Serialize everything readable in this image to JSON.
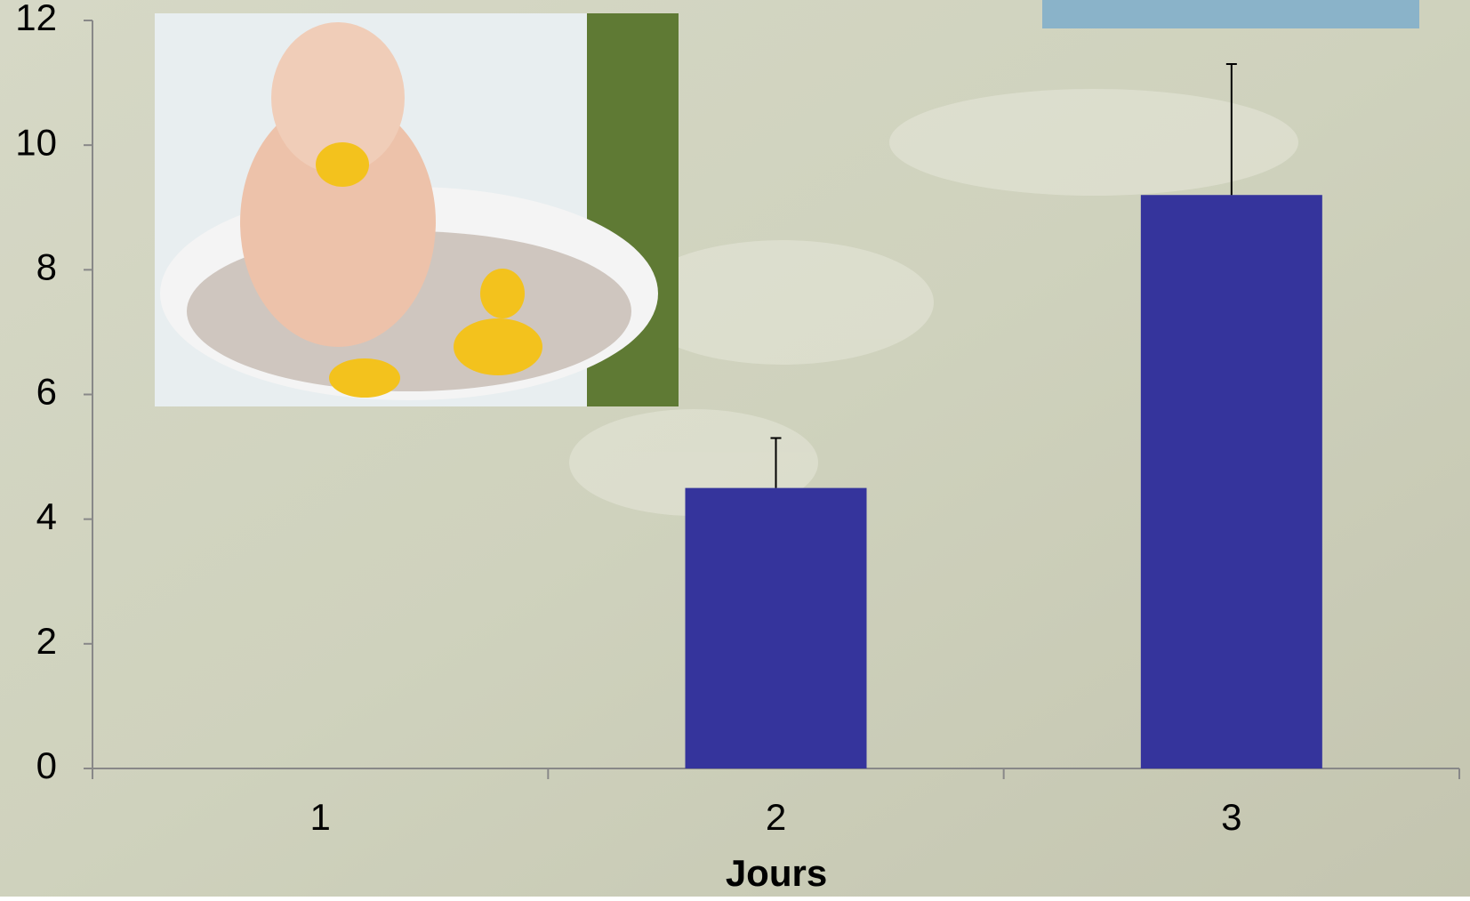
{
  "chart_data": {
    "type": "bar",
    "x_label": "Jours",
    "categories": [
      "1",
      "2",
      "3"
    ],
    "values": [
      0,
      4.5,
      9.2
    ],
    "errors": [
      null,
      0.8,
      2.1
    ],
    "color": "#35349c",
    "ylim": [
      0,
      12
    ],
    "yticks": [
      0,
      2,
      4,
      6,
      8,
      10,
      12
    ]
  }
}
